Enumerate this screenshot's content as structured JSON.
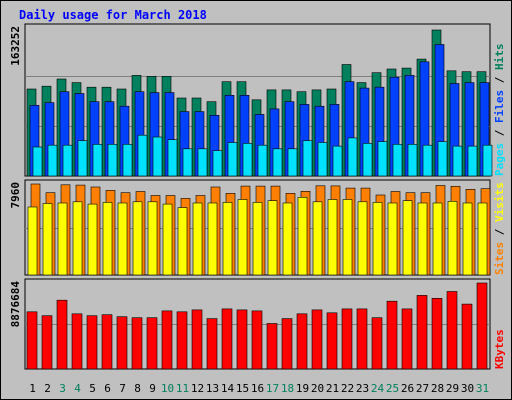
{
  "chart_data": {
    "type": "bar",
    "title": "Daily usage for March 2018",
    "categories": [
      "1",
      "2",
      "3",
      "4",
      "5",
      "6",
      "7",
      "8",
      "9",
      "10",
      "11",
      "12",
      "13",
      "14",
      "15",
      "16",
      "17",
      "18",
      "19",
      "20",
      "21",
      "22",
      "23",
      "24",
      "25",
      "26",
      "27",
      "28",
      "29",
      "30",
      "31"
    ],
    "weekend_days": [
      "3",
      "4",
      "10",
      "11",
      "17",
      "18",
      "24",
      "25",
      "31"
    ],
    "panels": [
      {
        "ymax_label": "163252",
        "ymax": 163252,
        "series": [
          {
            "name": "Hits",
            "color": "#00805c",
            "values": [
              96000,
              99000,
              107000,
              103000,
              98000,
              98000,
              96000,
              111000,
              110000,
              110000,
              86000,
              86000,
              82000,
              104000,
              104000,
              84000,
              95000,
              95000,
              93000,
              95000,
              96000,
              123000,
              103000,
              114000,
              118000,
              119000,
              129000,
              161000,
              116000,
              115000,
              115000
            ]
          },
          {
            "name": "Files",
            "color": "#0040ff",
            "values": [
              78000,
              81000,
              93000,
              91000,
              82000,
              82000,
              77000,
              93000,
              92000,
              92000,
              71000,
              71000,
              67000,
              89000,
              89000,
              68000,
              74000,
              82000,
              79000,
              77000,
              79000,
              104000,
              97000,
              98000,
              109000,
              111000,
              126000,
              145000,
              102000,
              103000,
              103000
            ]
          },
          {
            "name": "Pages",
            "color": "#00e0ff",
            "values": [
              32000,
              34000,
              34000,
              39000,
              35000,
              35000,
              35000,
              45000,
              43000,
              40000,
              30000,
              30000,
              28000,
              37000,
              36000,
              34000,
              30000,
              30000,
              39000,
              37000,
              33000,
              42000,
              36000,
              38000,
              35000,
              35000,
              34000,
              38000,
              33000,
              33000,
              34000
            ]
          }
        ],
        "legend_names": [
          "Pages",
          "Files",
          "Hits"
        ],
        "legend_colors": [
          "#00e0ff",
          "#0040ff",
          "#00805c"
        ]
      },
      {
        "ymax_label": "7960",
        "ymax": 7960,
        "series": [
          {
            "name": "Sites",
            "color": "#ff8000",
            "values": [
              7960,
              7200,
              7890,
              7860,
              7700,
              7400,
              7200,
              7300,
              6950,
              6950,
              6700,
              6950,
              7700,
              7150,
              7780,
              7780,
              7780,
              7150,
              7320,
              7800,
              7790,
              7600,
              7600,
              7000,
              7300,
              7200,
              7200,
              7830,
              7760,
              7500,
              7550
            ]
          },
          {
            "name": "Visits",
            "color": "#ffff00",
            "values": [
              5950,
              6250,
              6300,
              6400,
              6200,
              6350,
              6300,
              6400,
              6400,
              6200,
              5900,
              6300,
              6300,
              6350,
              6600,
              6350,
              6500,
              6300,
              6800,
              6400,
              6600,
              6600,
              6400,
              6350,
              6300,
              6500,
              6300,
              6300,
              6450,
              6300,
              6300
            ]
          }
        ],
        "legend_names": [
          "Sites",
          "Visits"
        ],
        "legend_colors": [
          "#ff8000",
          "#ffff00"
        ]
      },
      {
        "ymax_label": "8876684",
        "ymax": 8876684,
        "series": [
          {
            "name": "KBytes",
            "color": "#ff0000",
            "values": [
              5900000,
              5500000,
              7100000,
              5700000,
              5500000,
              5600000,
              5400000,
              5300000,
              5300000,
              6000000,
              5900000,
              6100000,
              5200000,
              6200000,
              6100000,
              6000000,
              4700000,
              5200000,
              5700000,
              6100000,
              5800000,
              6200000,
              6200000,
              5300000,
              7000000,
              6200000,
              7600000,
              7300000,
              8000000,
              6700000,
              8876684
            ]
          }
        ],
        "legend_names": [
          "KBytes"
        ],
        "legend_colors": [
          "#ff0000"
        ]
      }
    ]
  },
  "colors": {
    "title": "#0000ff",
    "panel_bg": "#c0c0c0",
    "weekday_label": "#000000",
    "weekend_label": "#00805c",
    "legend_separator": "#000000"
  }
}
